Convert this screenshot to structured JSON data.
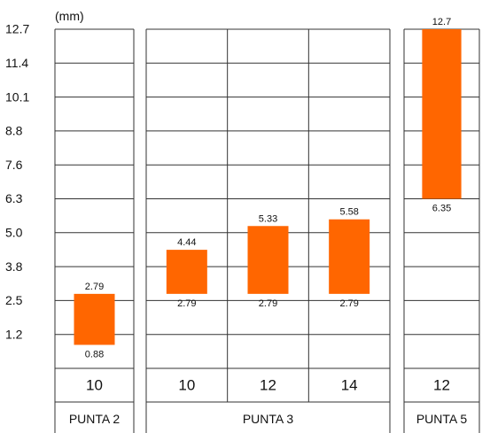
{
  "chart_data": {
    "type": "bar",
    "unit": "(mm)",
    "y_ticks": [
      "12.7",
      "11.4",
      "10.1",
      "8.8",
      "7.6",
      "6.3",
      "5.0",
      "3.8",
      "2.5",
      "1.2"
    ],
    "ylim": [
      0,
      12.7
    ],
    "colors": {
      "bar": "#ff6600",
      "grid": "#333333"
    },
    "groups": [
      {
        "name": "PUNTA 2",
        "bars": [
          {
            "category": "10",
            "low": 0.88,
            "high": 2.79,
            "low_label": "0.88",
            "high_label": "2.79"
          }
        ]
      },
      {
        "name": "PUNTA 3",
        "bars": [
          {
            "category": "10",
            "low": 2.79,
            "high": 4.44,
            "low_label": "2.79",
            "high_label": "4.44"
          },
          {
            "category": "12",
            "low": 2.79,
            "high": 5.33,
            "low_label": "2.79",
            "high_label": "5.33"
          },
          {
            "category": "14",
            "low": 2.79,
            "high": 5.58,
            "low_label": "2.79",
            "high_label": "5.58"
          }
        ]
      },
      {
        "name": "PUNTA 5",
        "bars": [
          {
            "category": "12",
            "low": 6.35,
            "high": 12.7,
            "low_label": "6.35",
            "high_label": "12.7"
          }
        ]
      }
    ]
  }
}
